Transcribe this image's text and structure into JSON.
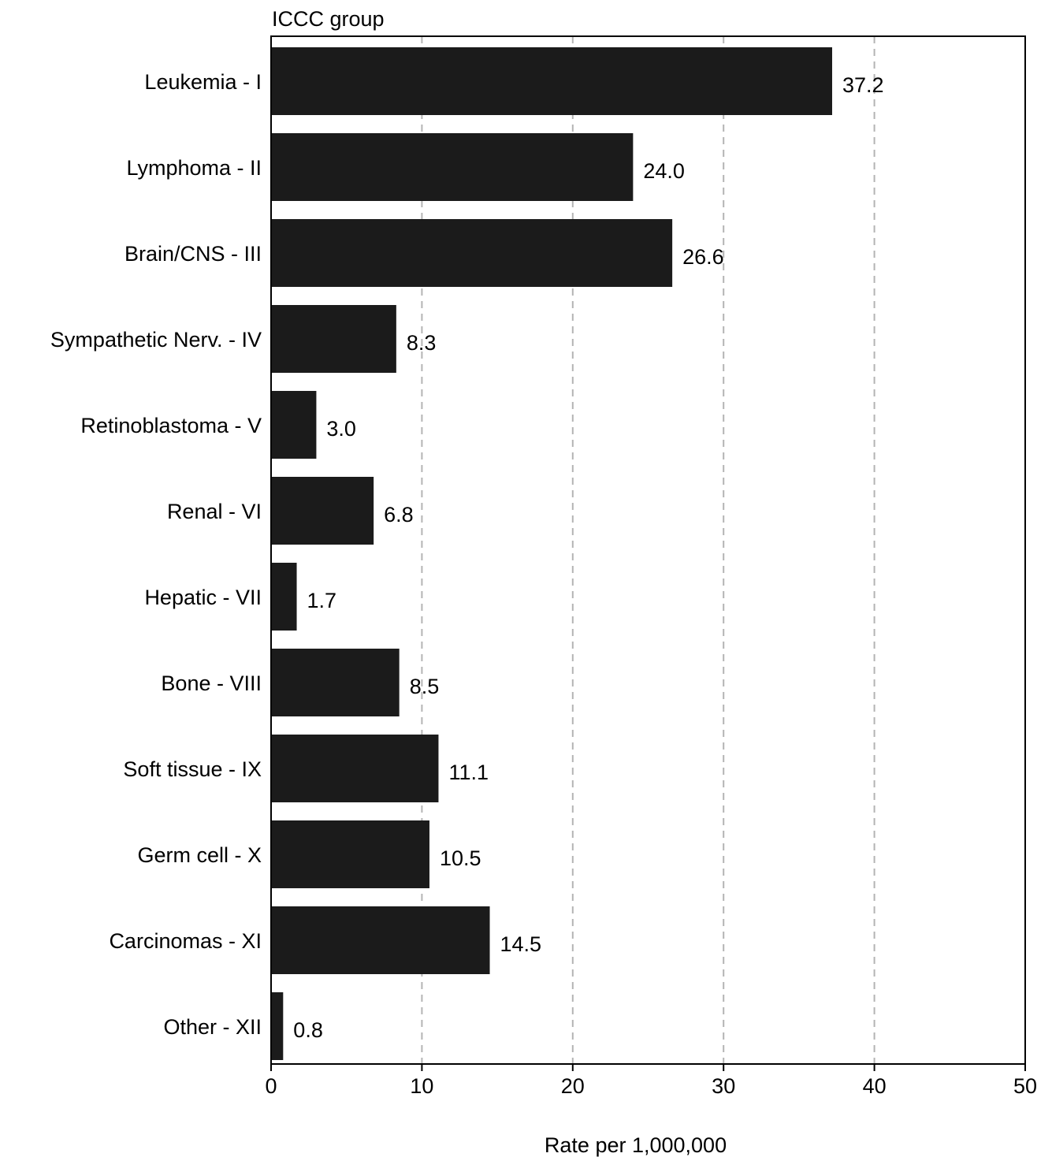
{
  "chart_data": {
    "type": "bar",
    "orientation": "horizontal",
    "title": "",
    "ylabel": "ICCC group",
    "xlabel": "Rate per 1,000,000",
    "categories": [
      "Leukemia - I",
      "Lymphoma - II",
      "Brain/CNS - III",
      "Sympathetic Nerv. - IV",
      "Retinoblastoma - V",
      "Renal - VI",
      "Hepatic - VII",
      "Bone - VIII",
      "Soft tissue - IX",
      "Germ cell - X",
      "Carcinomas - XI",
      "Other - XII"
    ],
    "values": [
      37.2,
      24.0,
      26.6,
      8.3,
      3.0,
      6.8,
      1.7,
      8.5,
      11.1,
      10.5,
      14.5,
      0.8
    ],
    "value_labels": [
      "37.2",
      "24.0",
      "26.6",
      "8.3",
      "3.0",
      "6.8",
      "1.7",
      "8.5",
      "11.1",
      "10.5",
      "14.5",
      "0.8"
    ],
    "xlim": [
      0,
      50
    ],
    "xticks": [
      0,
      10,
      20,
      30,
      40,
      50
    ],
    "xtick_labels": [
      "0",
      "10",
      "20",
      "30",
      "40",
      "50"
    ],
    "grid": "vertical dashed",
    "bar_color": "#1b1b1b",
    "grid_color": "#b4b4b4",
    "legend": "none"
  }
}
